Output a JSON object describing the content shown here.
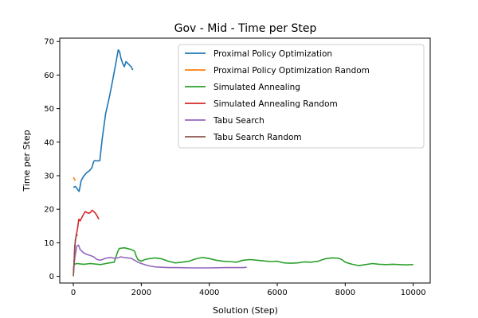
{
  "chart_data": {
    "type": "line",
    "title": "Gov - Mid - Time per Step",
    "xlabel": "Solution (Step)",
    "ylabel": "Time per Step",
    "xlim": [
      -400,
      10500
    ],
    "ylim": [
      -2,
      71
    ],
    "xticks": [
      0,
      2000,
      4000,
      6000,
      8000,
      10000
    ],
    "yticks": [
      0,
      10,
      20,
      30,
      40,
      50,
      60,
      70
    ],
    "grid": false,
    "legend_position": "top-right",
    "series": [
      {
        "name": "Proximal Policy Optimization",
        "color": "#1f77b4",
        "x": [
          0,
          60,
          120,
          170,
          230,
          300,
          400,
          480,
          550,
          600,
          650,
          700,
          780,
          850,
          950,
          1050,
          1150,
          1250,
          1320,
          1360,
          1400,
          1450,
          1500,
          1550,
          1600,
          1650,
          1700,
          1750
        ],
        "y": [
          26.5,
          26.8,
          26,
          25.3,
          28.5,
          29.8,
          31,
          31.5,
          32.5,
          34.3,
          34.5,
          34.4,
          34.5,
          41,
          48.5,
          53,
          58,
          63.5,
          67.5,
          67,
          65,
          63.5,
          62.5,
          64,
          63.5,
          63,
          62.5,
          61.5
        ]
      },
      {
        "name": "Proximal Policy Optimization Random",
        "color": "#ff7f0e",
        "x": [
          0,
          20,
          40,
          60
        ],
        "y": [
          29.5,
          29.2,
          28.8,
          28.5
        ]
      },
      {
        "name": "Simulated Annealing",
        "color": "#2ca02c",
        "x": [
          0,
          100,
          300,
          500,
          800,
          1000,
          1200,
          1300,
          1350,
          1500,
          1700,
          1800,
          1850,
          1900,
          2000,
          2100,
          2200,
          2400,
          2600,
          2800,
          3000,
          3200,
          3400,
          3600,
          3800,
          4000,
          4200,
          4400,
          4600,
          4800,
          5000,
          5200,
          5400,
          5600,
          5800,
          6000,
          6200,
          6400,
          6600,
          6800,
          7000,
          7200,
          7400,
          7600,
          7800,
          7900,
          8000,
          8200,
          8400,
          8600,
          8800,
          9000,
          9200,
          9400,
          9600,
          9800,
          10000
        ],
        "y": [
          3.5,
          3.8,
          3.6,
          3.8,
          3.5,
          3.9,
          4.2,
          7.2,
          8.3,
          8.5,
          8.0,
          7.5,
          6.0,
          5.0,
          4.5,
          5.0,
          5.2,
          5.5,
          5.2,
          4.5,
          4.0,
          4.2,
          4.5,
          5.2,
          5.6,
          5.3,
          4.8,
          4.5,
          4.4,
          4.2,
          4.8,
          5.0,
          4.8,
          4.6,
          4.4,
          4.5,
          4.0,
          3.9,
          4.0,
          4.3,
          4.2,
          4.5,
          5.2,
          5.5,
          5.4,
          5.0,
          4.2,
          3.6,
          3.2,
          3.5,
          3.8,
          3.6,
          3.5,
          3.6,
          3.5,
          3.4,
          3.5
        ]
      },
      {
        "name": "Simulated Annealing Random",
        "color": "#d62728",
        "x": [
          0,
          20,
          40,
          80,
          120,
          160,
          200,
          250,
          300,
          350,
          400,
          450,
          500,
          550,
          600,
          650,
          700,
          750
        ],
        "y": [
          0.5,
          4,
          9,
          12,
          14,
          17,
          16.5,
          17.5,
          18.5,
          19.3,
          19.0,
          18.8,
          19.0,
          19.7,
          19.3,
          18.8,
          18.0,
          17.0
        ]
      },
      {
        "name": "Tabu Search",
        "color": "#9467bd",
        "x": [
          0,
          50,
          100,
          150,
          200,
          300,
          400,
          500,
          600,
          700,
          800,
          900,
          1000,
          1100,
          1200,
          1300,
          1400,
          1500,
          1600,
          1700,
          1800,
          1900,
          2000,
          2200,
          2400,
          2600,
          2800,
          3000,
          3500,
          4000,
          4500,
          5000,
          5100
        ],
        "y": [
          2.0,
          6.0,
          9.0,
          9.3,
          8.0,
          7.0,
          6.5,
          6.2,
          5.8,
          5.0,
          4.8,
          5.2,
          5.5,
          5.6,
          5.4,
          5.5,
          5.8,
          5.6,
          5.5,
          5.4,
          4.8,
          4.2,
          3.8,
          3.2,
          2.8,
          2.7,
          2.6,
          2.6,
          2.5,
          2.5,
          2.6,
          2.6,
          2.7
        ]
      },
      {
        "name": "Tabu Search Random",
        "color": "#8c564b",
        "x": [
          0,
          20,
          40,
          60,
          90,
          120
        ],
        "y": [
          0.0,
          3.0,
          8.0,
          11.0,
          12.0,
          12.5
        ]
      }
    ]
  }
}
